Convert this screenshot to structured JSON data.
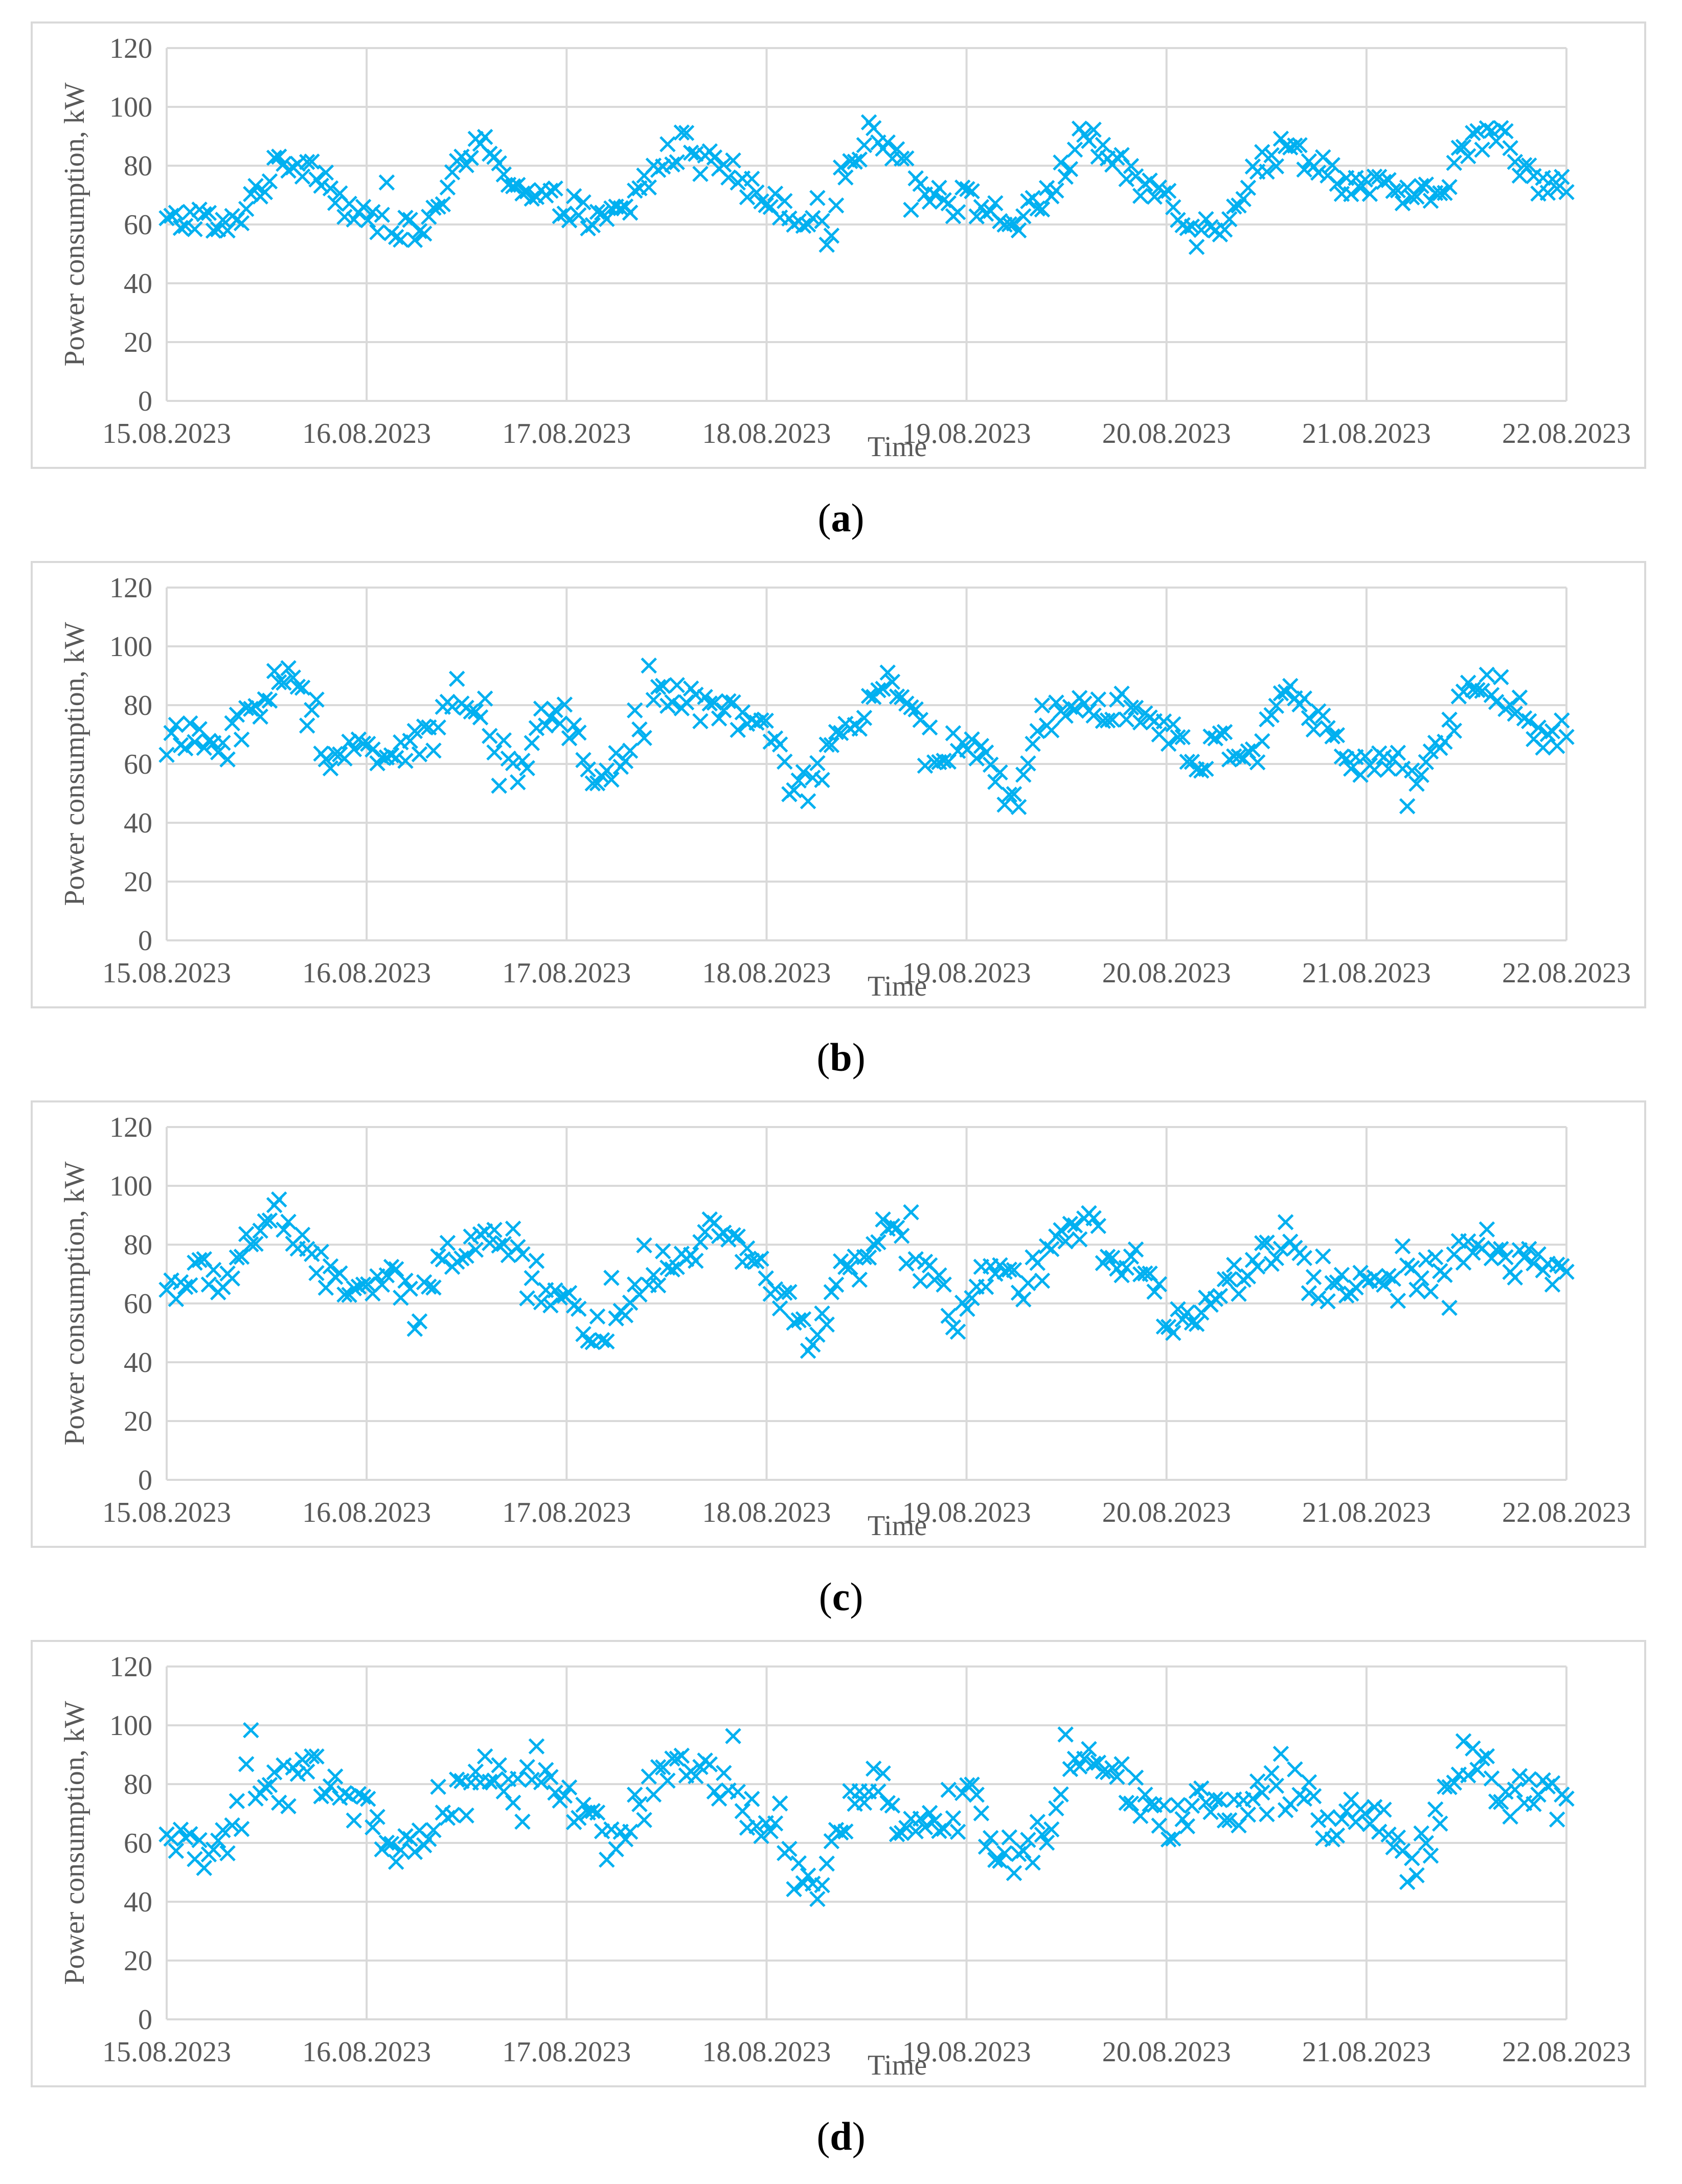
{
  "chart_data": [
    {
      "type": "scatter",
      "panel": "a",
      "marker": "x",
      "color": "#00b0f0",
      "title": "",
      "xlabel": "Time",
      "ylabel": "Power consumption, kW",
      "ylim": [
        0,
        120
      ],
      "yticks": [
        0,
        20,
        40,
        60,
        80,
        100,
        120
      ],
      "xlim": [
        0,
        7
      ],
      "xticks": [
        "15.08.2023",
        "16.08.2023",
        "17.08.2023",
        "18.08.2023",
        "19.08.2023",
        "20.08.2023",
        "21.08.2023",
        "22.08.2023"
      ],
      "x_unit": "days since 15.08.2023",
      "anchors": [
        [
          0,
          60
        ],
        [
          0.15,
          63
        ],
        [
          0.3,
          57
        ],
        [
          0.45,
          72
        ],
        [
          0.6,
          82
        ],
        [
          0.75,
          80
        ],
        [
          0.9,
          66
        ],
        [
          1.0,
          60
        ],
        [
          1.1,
          63
        ],
        [
          1.25,
          55
        ],
        [
          1.4,
          72
        ],
        [
          1.5,
          82
        ],
        [
          1.6,
          88
        ],
        [
          1.7,
          78
        ],
        [
          1.8,
          70
        ],
        [
          2.0,
          67
        ],
        [
          2.15,
          60
        ],
        [
          2.3,
          65
        ],
        [
          2.45,
          80
        ],
        [
          2.6,
          88
        ],
        [
          2.75,
          85
        ],
        [
          2.9,
          72
        ],
        [
          3.05,
          68
        ],
        [
          3.2,
          62
        ],
        [
          3.3,
          66
        ],
        [
          3.45,
          85
        ],
        [
          3.55,
          93
        ],
        [
          3.7,
          80
        ],
        [
          3.85,
          70
        ],
        [
          4.0,
          68
        ],
        [
          4.1,
          66
        ],
        [
          4.2,
          60
        ],
        [
          4.35,
          65
        ],
        [
          4.5,
          80
        ],
        [
          4.6,
          92
        ],
        [
          4.75,
          80
        ],
        [
          4.9,
          72
        ],
        [
          5.0,
          72
        ],
        [
          5.15,
          57
        ],
        [
          5.3,
          62
        ],
        [
          5.45,
          80
        ],
        [
          5.6,
          86
        ],
        [
          5.75,
          82
        ],
        [
          5.9,
          74
        ],
        [
          6.05,
          72
        ],
        [
          6.2,
          70
        ],
        [
          6.35,
          68
        ],
        [
          6.45,
          83
        ],
        [
          6.55,
          88
        ],
        [
          6.65,
          92
        ],
        [
          6.75,
          82
        ],
        [
          6.85,
          75
        ],
        [
          7.0,
          76
        ]
      ],
      "spread": 5
    },
    {
      "type": "scatter",
      "panel": "b",
      "marker": "x",
      "color": "#00b0f0",
      "title": "",
      "xlabel": "Time",
      "ylabel": "Power consumption, kW",
      "ylim": [
        0,
        120
      ],
      "yticks": [
        0,
        20,
        40,
        60,
        80,
        100,
        120
      ],
      "xlim": [
        0,
        7
      ],
      "xticks": [
        "15.08.2023",
        "16.08.2023",
        "17.08.2023",
        "18.08.2023",
        "19.08.2023",
        "20.08.2023",
        "21.08.2023",
        "22.08.2023"
      ],
      "x_unit": "days since 15.08.2023",
      "anchors": [
        [
          0,
          68
        ],
        [
          0.15,
          68
        ],
        [
          0.3,
          66
        ],
        [
          0.45,
          80
        ],
        [
          0.6,
          92
        ],
        [
          0.7,
          78
        ],
        [
          0.8,
          60
        ],
        [
          1.0,
          66
        ],
        [
          1.2,
          65
        ],
        [
          1.35,
          68
        ],
        [
          1.45,
          88
        ],
        [
          1.6,
          76
        ],
        [
          1.75,
          52
        ],
        [
          1.9,
          78
        ],
        [
          2.05,
          72
        ],
        [
          2.15,
          50
        ],
        [
          2.3,
          62
        ],
        [
          2.45,
          82
        ],
        [
          2.6,
          85
        ],
        [
          2.75,
          75
        ],
        [
          2.9,
          78
        ],
        [
          3.05,
          65
        ],
        [
          3.2,
          50
        ],
        [
          3.3,
          62
        ],
        [
          3.45,
          72
        ],
        [
          3.6,
          90
        ],
        [
          3.75,
          80
        ],
        [
          3.85,
          62
        ],
        [
          4.0,
          68
        ],
        [
          4.1,
          58
        ],
        [
          4.25,
          44
        ],
        [
          4.35,
          75
        ],
        [
          4.55,
          85
        ],
        [
          4.7,
          80
        ],
        [
          4.85,
          80
        ],
        [
          5.0,
          70
        ],
        [
          5.15,
          62
        ],
        [
          5.3,
          66
        ],
        [
          5.45,
          65
        ],
        [
          5.55,
          83
        ],
        [
          5.7,
          80
        ],
        [
          5.85,
          65
        ],
        [
          6.0,
          60
        ],
        [
          6.15,
          60
        ],
        [
          6.3,
          56
        ],
        [
          6.4,
          70
        ],
        [
          6.5,
          82
        ],
        [
          6.6,
          88
        ],
        [
          6.75,
          82
        ],
        [
          6.85,
          68
        ],
        [
          7.0,
          72
        ]
      ],
      "spread": 6
    },
    {
      "type": "scatter",
      "panel": "c",
      "marker": "x",
      "color": "#00b0f0",
      "title": "",
      "xlabel": "Time",
      "ylabel": "Power consumption, kW",
      "ylim": [
        0,
        120
      ],
      "yticks": [
        0,
        20,
        40,
        60,
        80,
        100,
        120
      ],
      "xlim": [
        0,
        7
      ],
      "xticks": [
        "15.08.2023",
        "16.08.2023",
        "17.08.2023",
        "18.08.2023",
        "19.08.2023",
        "20.08.2023",
        "21.08.2023",
        "22.08.2023"
      ],
      "x_unit": "days since 15.08.2023",
      "anchors": [
        [
          0,
          65
        ],
        [
          0.15,
          70
        ],
        [
          0.3,
          68
        ],
        [
          0.4,
          80
        ],
        [
          0.55,
          92
        ],
        [
          0.7,
          75
        ],
        [
          0.85,
          68
        ],
        [
          1.0,
          65
        ],
        [
          1.15,
          68
        ],
        [
          1.25,
          55
        ],
        [
          1.35,
          72
        ],
        [
          1.5,
          82
        ],
        [
          1.65,
          85
        ],
        [
          1.8,
          75
        ],
        [
          1.95,
          62
        ],
        [
          2.05,
          55
        ],
        [
          2.2,
          50
        ],
        [
          2.35,
          64
        ],
        [
          2.5,
          75
        ],
        [
          2.65,
          80
        ],
        [
          2.75,
          88
        ],
        [
          2.9,
          75
        ],
        [
          3.05,
          65
        ],
        [
          3.15,
          55
        ],
        [
          3.25,
          45
        ],
        [
          3.35,
          68
        ],
        [
          3.5,
          75
        ],
        [
          3.6,
          85
        ],
        [
          3.75,
          75
        ],
        [
          3.95,
          55
        ],
        [
          4.1,
          70
        ],
        [
          4.25,
          65
        ],
        [
          4.4,
          75
        ],
        [
          4.55,
          85
        ],
        [
          4.65,
          90
        ],
        [
          4.75,
          68
        ],
        [
          4.9,
          75
        ],
        [
          5.0,
          55
        ],
        [
          5.15,
          58
        ],
        [
          5.3,
          65
        ],
        [
          5.45,
          75
        ],
        [
          5.55,
          80
        ],
        [
          5.65,
          78
        ],
        [
          5.75,
          62
        ],
        [
          5.9,
          68
        ],
        [
          6.1,
          65
        ],
        [
          6.25,
          68
        ],
        [
          6.4,
          72
        ],
        [
          6.55,
          82
        ],
        [
          6.7,
          75
        ],
        [
          6.85,
          72
        ],
        [
          7.0,
          70
        ]
      ],
      "spread": 6
    },
    {
      "type": "scatter",
      "panel": "d",
      "marker": "x",
      "color": "#00b0f0",
      "title": "",
      "xlabel": "Time",
      "ylabel": "Power consumption, kW",
      "ylim": [
        0,
        120
      ],
      "yticks": [
        0,
        20,
        40,
        60,
        80,
        100,
        120
      ],
      "xlim": [
        0,
        7
      ],
      "xticks": [
        "15.08.2023",
        "16.08.2023",
        "17.08.2023",
        "18.08.2023",
        "19.08.2023",
        "20.08.2023",
        "21.08.2023",
        "22.08.2023"
      ],
      "x_unit": "days since 15.08.2023",
      "anchors": [
        [
          0,
          58
        ],
        [
          0.1,
          65
        ],
        [
          0.2,
          48
        ],
        [
          0.3,
          60
        ],
        [
          0.4,
          82
        ],
        [
          0.55,
          78
        ],
        [
          0.7,
          85
        ],
        [
          0.85,
          80
        ],
        [
          1.0,
          70
        ],
        [
          1.1,
          62
        ],
        [
          1.2,
          55
        ],
        [
          1.35,
          72
        ],
        [
          1.5,
          75
        ],
        [
          1.6,
          85
        ],
        [
          1.75,
          80
        ],
        [
          1.9,
          78
        ],
        [
          2.05,
          70
        ],
        [
          2.2,
          60
        ],
        [
          2.35,
          72
        ],
        [
          2.5,
          85
        ],
        [
          2.65,
          85
        ],
        [
          2.8,
          80
        ],
        [
          2.95,
          68
        ],
        [
          3.05,
          72
        ],
        [
          3.15,
          48
        ],
        [
          3.25,
          45
        ],
        [
          3.35,
          65
        ],
        [
          3.5,
          80
        ],
        [
          3.6,
          78
        ],
        [
          3.7,
          62
        ],
        [
          3.85,
          68
        ],
        [
          4.0,
          78
        ],
        [
          4.1,
          65
        ],
        [
          4.25,
          48
        ],
        [
          4.35,
          60
        ],
        [
          4.5,
          80
        ],
        [
          4.6,
          90
        ],
        [
          4.75,
          82
        ],
        [
          4.9,
          72
        ],
        [
          5.0,
          65
        ],
        [
          5.15,
          72
        ],
        [
          5.3,
          70
        ],
        [
          5.45,
          75
        ],
        [
          5.6,
          80
        ],
        [
          5.7,
          80
        ],
        [
          5.8,
          65
        ],
        [
          5.95,
          72
        ],
        [
          6.1,
          65
        ],
        [
          6.2,
          52
        ],
        [
          6.3,
          58
        ],
        [
          6.45,
          88
        ],
        [
          6.55,
          88
        ],
        [
          6.7,
          75
        ],
        [
          6.85,
          78
        ],
        [
          7.0,
          70
        ]
      ],
      "spread": 7
    }
  ],
  "captions": [
    {
      "letter": "a",
      "open": "(",
      "close": ")"
    },
    {
      "letter": "b",
      "open": "(",
      "close": ")"
    },
    {
      "letter": "c",
      "open": "(",
      "close": ")"
    },
    {
      "letter": "d",
      "open": "(",
      "close": ")"
    }
  ]
}
